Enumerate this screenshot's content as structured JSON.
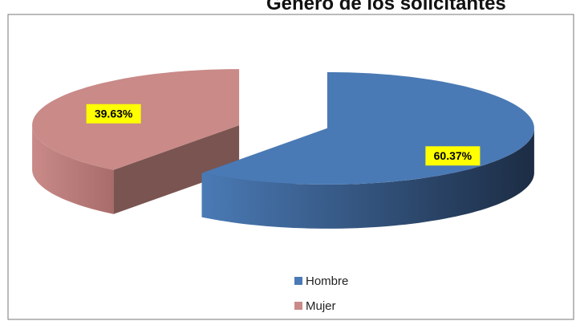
{
  "chart_data": {
    "type": "pie3d",
    "title": "Género de los solicitantes",
    "categories": [
      "Hombre",
      "Mujer"
    ],
    "values": [
      60.37,
      39.63
    ],
    "value_labels": [
      "60.37%",
      "39.63%"
    ],
    "colors": [
      "#4a7ab5",
      "#c98a88"
    ],
    "legend": "bottom"
  }
}
